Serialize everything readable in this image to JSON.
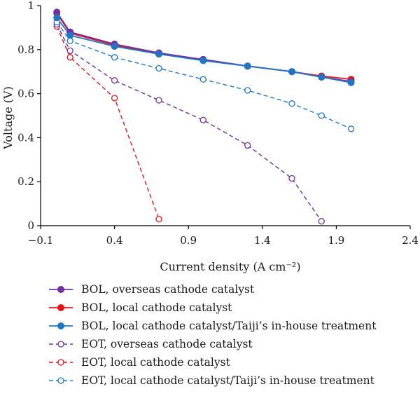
{
  "chart_data": {
    "type": "line",
    "title": "",
    "xlabel": "Current density (A cm⁻²)",
    "ylabel": "Voltage (V)",
    "xlim": [
      -0.1,
      2.4
    ],
    "ylim": [
      0,
      1
    ],
    "xticks": [
      -0.1,
      0.4,
      0.9,
      1.4,
      1.9,
      2.4
    ],
    "xtick_labels": [
      "−0.1",
      "0.4",
      "0.9",
      "1.4",
      "1.9",
      "2.4"
    ],
    "yticks": [
      0,
      0.2,
      0.4,
      0.6,
      0.8,
      1
    ],
    "ytick_labels": [
      "0",
      "0.2",
      "0.4",
      "0.6",
      "0.8",
      "1"
    ],
    "grid": false,
    "legend_position": "bottom",
    "series": [
      {
        "name": "BOL, overseas cathode catalyst",
        "color": "#7030a0",
        "line": "solid",
        "marker": "filled-circle",
        "x": [
          0.01,
          0.1,
          0.4,
          0.7,
          1.0,
          1.3,
          1.6,
          1.8,
          2.0
        ],
        "y": [
          0.97,
          0.88,
          0.825,
          0.785,
          0.755,
          0.725,
          0.7,
          0.675,
          0.655
        ]
      },
      {
        "name": "BOL, local cathode catalyst",
        "color": "#e8141a",
        "line": "solid",
        "marker": "filled-circle",
        "x": [
          0.01,
          0.1,
          0.4,
          0.7,
          1.0,
          1.3,
          1.6,
          1.8,
          2.0
        ],
        "y": [
          0.965,
          0.875,
          0.82,
          0.78,
          0.755,
          0.725,
          0.7,
          0.68,
          0.665
        ]
      },
      {
        "name": "BOL, local cathode catalyst/Taiji’s in-house treatment",
        "color": "#1f77c4",
        "line": "solid",
        "marker": "filled-circle",
        "x": [
          0.01,
          0.1,
          0.4,
          0.7,
          1.0,
          1.3,
          1.6,
          1.8,
          2.0
        ],
        "y": [
          0.945,
          0.865,
          0.815,
          0.78,
          0.75,
          0.725,
          0.7,
          0.675,
          0.65
        ]
      },
      {
        "name": "EOT, overseas cathode catalyst",
        "color": "#7030a0",
        "line": "dashed",
        "marker": "open-circle",
        "x": [
          0.01,
          0.1,
          0.4,
          0.7,
          1.0,
          1.3,
          1.6,
          1.8
        ],
        "y": [
          0.915,
          0.795,
          0.66,
          0.57,
          0.48,
          0.365,
          0.215,
          0.02
        ]
      },
      {
        "name": "EOT, local cathode catalyst",
        "color": "#e8141a",
        "line": "dashed",
        "marker": "open-circle",
        "x": [
          0.01,
          0.1,
          0.4,
          0.7
        ],
        "y": [
          0.905,
          0.765,
          0.58,
          0.03
        ]
      },
      {
        "name": "EOT, local cathode catalyst/Taiji’s in-house treatment",
        "color": "#1f77c4",
        "line": "dashed",
        "marker": "open-circle",
        "x": [
          0.01,
          0.1,
          0.4,
          0.7,
          1.0,
          1.3,
          1.6,
          1.8,
          2.0
        ],
        "y": [
          0.925,
          0.84,
          0.765,
          0.715,
          0.665,
          0.615,
          0.555,
          0.5,
          0.44
        ]
      }
    ]
  }
}
